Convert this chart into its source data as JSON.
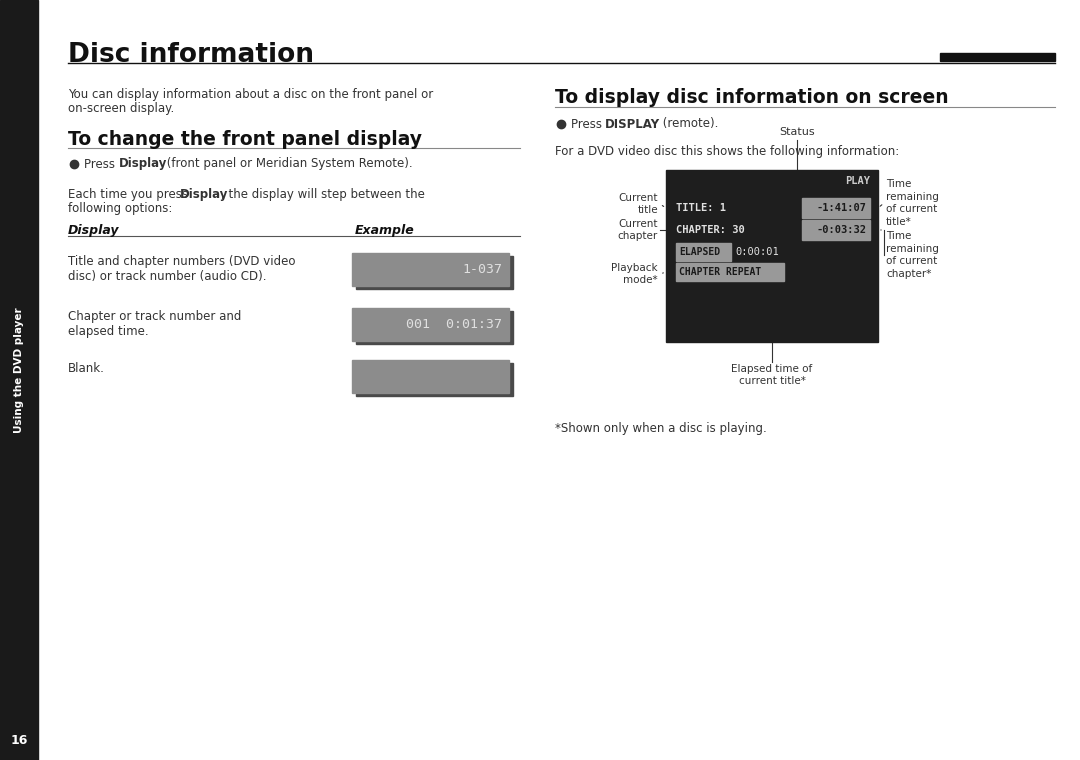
{
  "page_bg": "#ffffff",
  "sidebar_bg": "#1a1a1a",
  "sidebar_text": "Using the DVD player",
  "page_number": "16",
  "title": "Disc information",
  "intro_text_line1": "You can display information about a disc on the front panel or",
  "intro_text_line2": "on-screen display.",
  "section1_title": "To change the front panel display",
  "table_header_display": "Display",
  "table_header_example": "Example",
  "table_row1_display_line1": "Title and chapter numbers (DVD video",
  "table_row1_display_line2": "disc) or track number (audio CD).",
  "table_row1_example": "1-037",
  "table_row2_display_line1": "Chapter or track number and",
  "table_row2_display_line2": "elapsed time.",
  "table_row2_example": "001  0:01:37",
  "table_row3_display": "Blank.",
  "table_row3_example": "",
  "box_bg": "#8c8c8c",
  "box_text_color": "#e0e0e0",
  "box_shadow_color": "#4a4a4a",
  "section2_title": "To display disc information on screen",
  "para2_text": "For a DVD video disc this shows the following information:",
  "screen_bg": "#1e1e1e",
  "screen_highlight_bg": "#999999",
  "screen_highlight_text": "#1a1a1a",
  "screen_line1_left": "TITLE: 1",
  "screen_line1_right": "-1:41:07",
  "screen_line2_left": "CHAPTER: 30",
  "screen_line2_right": "-0:03:32",
  "screen_line3_label": "ELAPSED",
  "screen_line3_right": "0:00:01",
  "screen_line4": "CHAPTER REPEAT",
  "screen_status": "PLAY",
  "label_status": "Status",
  "label_current_title": "Current\ntitle",
  "label_current_chapter": "Current\nchapter",
  "label_playback_mode": "Playback\nmode*",
  "label_time_title": "Time\nremaining\nof current\ntitle*",
  "label_time_chapter": "Time\nremaining\nof current\nchapter*",
  "label_elapsed": "Elapsed time of\ncurrent title*",
  "footnote": "*Shown only when a disc is playing."
}
